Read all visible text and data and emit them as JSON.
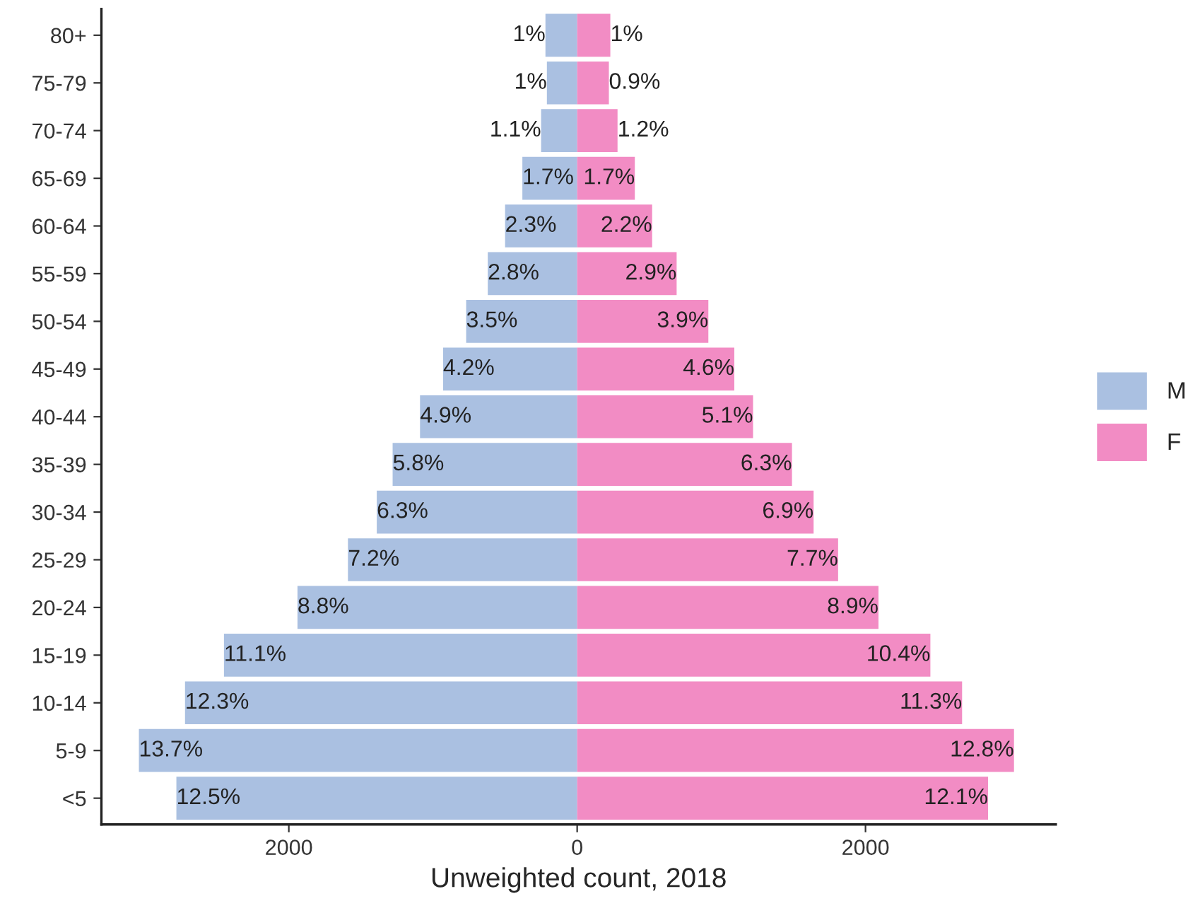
{
  "chart_data": {
    "type": "bar",
    "orientation": "horizontal",
    "stacked": true,
    "xlabel": "Unweighted count, 2018",
    "categories": [
      "80+",
      "75-79",
      "70-74",
      "65-69",
      "60-64",
      "55-59",
      "50-54",
      "45-49",
      "40-44",
      "35-39",
      "30-34",
      "25-29",
      "20-24",
      "15-19",
      "10-14",
      "5-9",
      "<5"
    ],
    "series": [
      {
        "name": "M",
        "color": "#aac0e1",
        "values": [
          -220,
          -210,
          -250,
          -380,
          -500,
          -620,
          -770,
          -930,
          -1090,
          -1280,
          -1390,
          -1590,
          -1940,
          -2450,
          -2720,
          -3040,
          -2780
        ]
      },
      {
        "name": "F",
        "color": "#f28cc4",
        "values": [
          230,
          220,
          280,
          400,
          520,
          690,
          910,
          1090,
          1220,
          1490,
          1640,
          1810,
          2090,
          2450,
          2670,
          3030,
          2850
        ]
      }
    ],
    "annotations": [
      {
        "text": "1%",
        "x": -220,
        "y": "80+"
      },
      {
        "text": "1%",
        "x": -210,
        "y": "75-79"
      },
      {
        "text": "1.1%",
        "x": -250,
        "y": "70-74"
      },
      {
        "text": "1.7%",
        "x": -380,
        "y": "65-69"
      },
      {
        "text": "2.3%",
        "x": -500,
        "y": "60-64"
      },
      {
        "text": "2.8%",
        "x": -620,
        "y": "55-59"
      },
      {
        "text": "3.5%",
        "x": -770,
        "y": "50-54"
      },
      {
        "text": "4.2%",
        "x": -930,
        "y": "45-49"
      },
      {
        "text": "4.9%",
        "x": -1090,
        "y": "40-44"
      },
      {
        "text": "5.8%",
        "x": -1280,
        "y": "35-39"
      },
      {
        "text": "6.3%",
        "x": -1390,
        "y": "30-34"
      },
      {
        "text": "7.2%",
        "x": -1590,
        "y": "25-29"
      },
      {
        "text": "8.8%",
        "x": -1940,
        "y": "20-24"
      },
      {
        "text": "11.1%",
        "x": -2450,
        "y": "15-19"
      },
      {
        "text": "12.3%",
        "x": -2720,
        "y": "10-14"
      },
      {
        "text": "13.7%",
        "x": -3040,
        "y": "5-9"
      },
      {
        "text": "12.5%",
        "x": -2780,
        "y": "<5"
      },
      {
        "text": "1%",
        "x": 230,
        "y": "80+"
      },
      {
        "text": "0.9%",
        "x": 220,
        "y": "75-79"
      },
      {
        "text": "1.2%",
        "x": 280,
        "y": "70-74"
      },
      {
        "text": "1.7%",
        "x": 400,
        "y": "65-69"
      },
      {
        "text": "2.2%",
        "x": 520,
        "y": "60-64"
      },
      {
        "text": "2.9%",
        "x": 690,
        "y": "55-59"
      },
      {
        "text": "3.9%",
        "x": 910,
        "y": "50-54"
      },
      {
        "text": "4.6%",
        "x": 1090,
        "y": "45-49"
      },
      {
        "text": "5.1%",
        "x": 1220,
        "y": "40-44"
      },
      {
        "text": "6.3%",
        "x": 1490,
        "y": "35-39"
      },
      {
        "text": "6.9%",
        "x": 1640,
        "y": "30-34"
      },
      {
        "text": "7.7%",
        "x": 1810,
        "y": "25-29"
      },
      {
        "text": "8.9%",
        "x": 2090,
        "y": "20-24"
      },
      {
        "text": "10.4%",
        "x": 2450,
        "y": "15-19"
      },
      {
        "text": "11.3%",
        "x": 2670,
        "y": "10-14"
      },
      {
        "text": "12.8%",
        "x": 3030,
        "y": "5-9"
      },
      {
        "text": "12.1%",
        "x": 2850,
        "y": "<5"
      }
    ],
    "xlim": [
      -3300,
      3320
    ],
    "xticks": [
      {
        "value": -2000,
        "label": "2000"
      },
      0,
      2000
    ],
    "grid": false,
    "legend": "right"
  }
}
